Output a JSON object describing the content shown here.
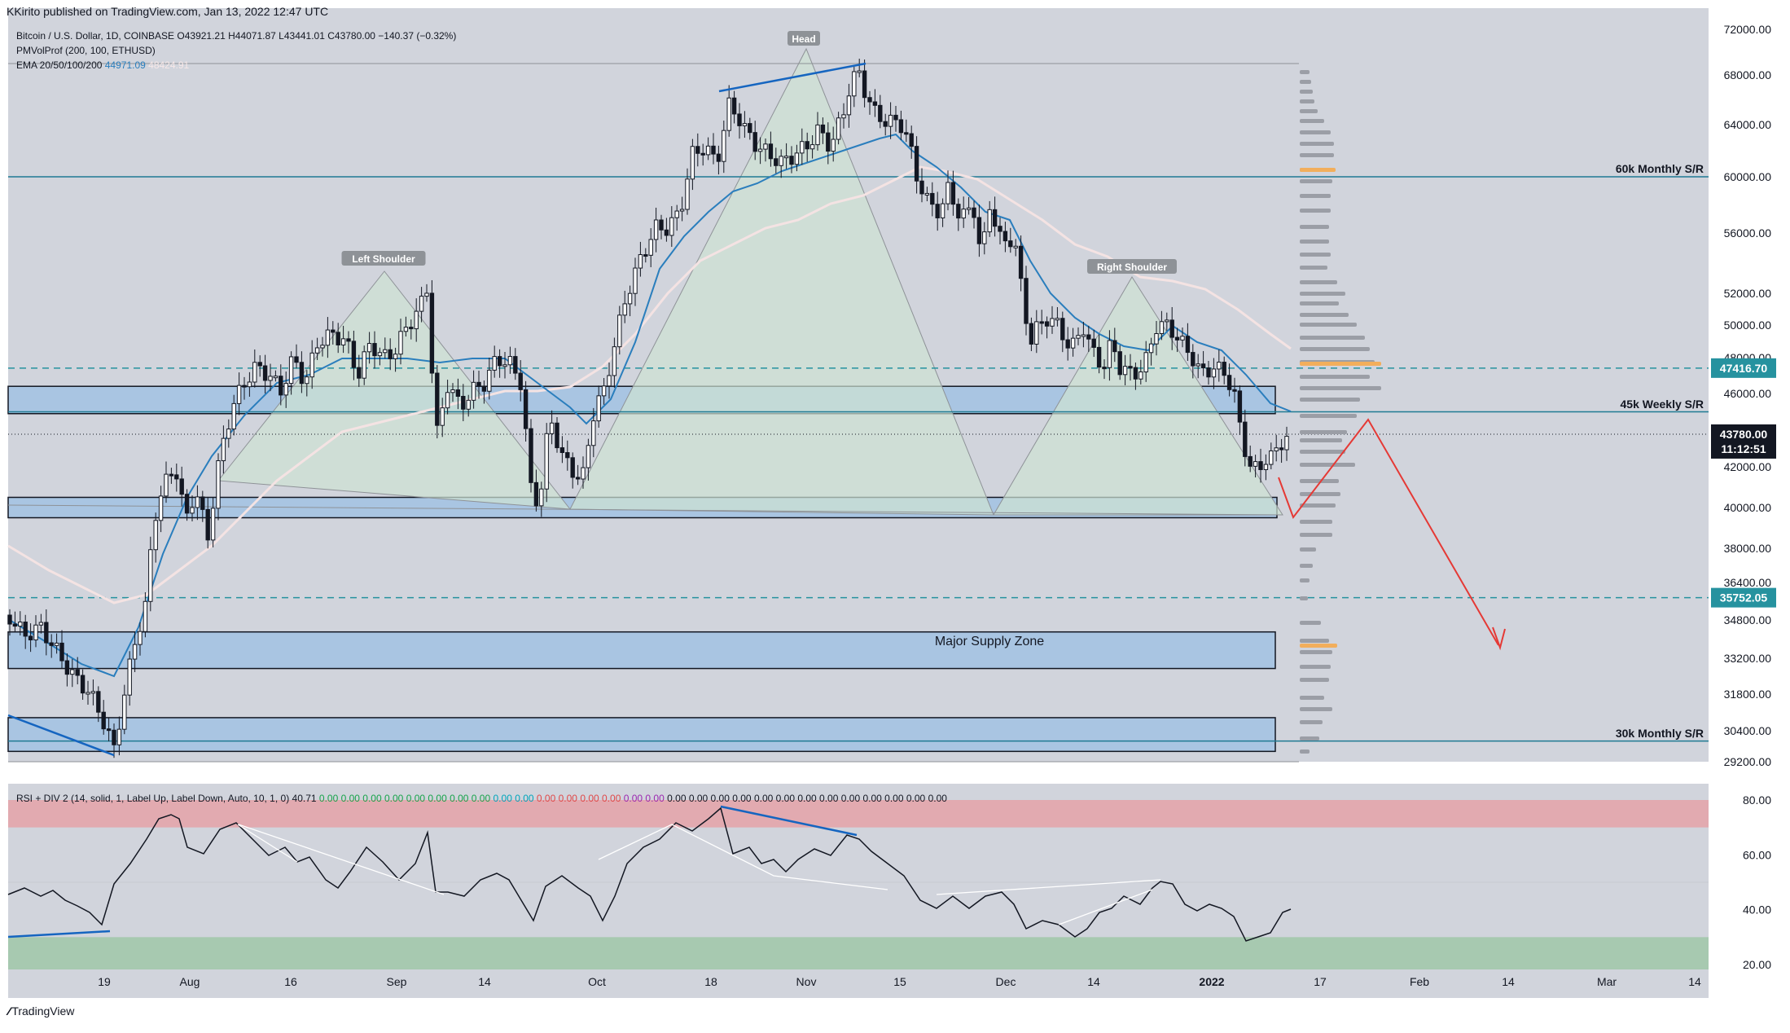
{
  "header": {
    "published": "KKirito published on TradingView.com, Jan 13, 2022 12:47 UTC"
  },
  "footer": {
    "brand": "TradingView",
    "logo_icon": "tradingview-logo-icon"
  },
  "legend": {
    "symbol_line": "Bitcoin / U.S. Dollar, 1D, COINBASE  O43921.21  H44071.87  L43441.01  C43780.00  −140.37 (−0.32%)",
    "pmvol": "PMVolProf (200, 100, ETHUSD)",
    "ema_label": "EMA 20/50/100/200",
    "ema_values": [
      "44971.09",
      "48424.91"
    ]
  },
  "colors": {
    "background": "#d1d4dc",
    "price_band": "#a9c5e2",
    "ema20": "#2a7ebd",
    "ema50": "#f4e3e3",
    "rsi_overbought": "#e2aab0",
    "rsi_oversold": "#a7c9b0",
    "teal_label": "#26929f",
    "projection": "#e53935",
    "volume_bar": "#9b9ea6",
    "poc_bar": "#f2ae5c"
  },
  "annotations": {
    "head": "Head",
    "left_shoulder": "Left Shoulder",
    "right_shoulder": "Right Shoulder",
    "supply_zone": "Major Supply Zone",
    "monthly_60k": "60k Monthly S/R",
    "weekly_45k": "45k Weekly S/R",
    "monthly_30k": "30k Monthly S/R"
  },
  "price_labels": {
    "level_47416": "47416.70",
    "level_35752": "35752.05",
    "last_price": "43780.00",
    "countdown": "11:12:51"
  },
  "rsi": {
    "legend_prefix": "RSI + DIV 2 (14, solid, 1, Label Up, Label Down, Auto, 10, 1, 0)",
    "value": "40.71",
    "zeros": [
      "0.00",
      "0.00",
      "0.00",
      "0.00",
      "0.00",
      "0.00",
      "0.00",
      "0.00",
      "0.00",
      "0.00",
      "0.00",
      "0.00",
      "0.00",
      "0.00",
      "0.00",
      "0.00",
      "0.00",
      "0.00",
      "0.00",
      "0.00",
      "0.00",
      "0.00",
      "0.00",
      "0.00",
      "0.00",
      "0.00",
      "0.00",
      "0.00",
      "0.00"
    ],
    "zero_colors": [
      "#17a34a",
      "#17a34a",
      "#17a34a",
      "#17a34a",
      "#17a34a",
      "#17a34a",
      "#17a34a",
      "#17a34a",
      "#00a5bb",
      "#00a5bb",
      "#e04848",
      "#e04848",
      "#e04848",
      "#e04848",
      "#9c27b0",
      "#9c27b0",
      "#131722",
      "#131722",
      "#131722",
      "#131722",
      "#131722",
      "#131722",
      "#131722",
      "#131722",
      "#131722",
      "#131722",
      "#131722",
      "#131722",
      "#131722"
    ]
  },
  "chart_data": [
    {
      "type": "candlestick",
      "title": "Bitcoin / U.S. Dollar, 1D, COINBASE",
      "ylim": [
        28500,
        72500
      ],
      "y_ticks": [
        "72000.00",
        "68000.00",
        "64000.00",
        "60000.00",
        "56000.00",
        "52000.00",
        "50000.00",
        "48000.00",
        "46000.00",
        "42000.00",
        "40000.00",
        "38000.00",
        "36400.00",
        "34800.00",
        "33200.00",
        "31800.00",
        "30400.00",
        "29200.00"
      ],
      "x_ticks": [
        "19",
        "Aug",
        "16",
        "Sep",
        "14",
        "Oct",
        "18",
        "Nov",
        "15",
        "Dec",
        "14",
        "2022",
        "17",
        "Feb",
        "14",
        "Mar",
        "14"
      ],
      "horizontal_levels": [
        60000,
        47416.7,
        45000,
        35752.05,
        30000
      ],
      "zones": [
        [
          46400,
          44900
        ],
        [
          40500,
          39500
        ],
        [
          34300,
          32800
        ],
        [
          30900,
          29600
        ]
      ],
      "last_price": 43780.0,
      "ema20_last": 44971.09,
      "ema50_last": 48424.91
    },
    {
      "type": "line",
      "title": "RSI + DIV 2",
      "ylim": [
        20,
        80
      ],
      "y_ticks": [
        "80.00",
        "60.00",
        "40.00",
        "20.00"
      ],
      "overbought": 70,
      "oversold": 30,
      "last_value": 40.71
    }
  ]
}
